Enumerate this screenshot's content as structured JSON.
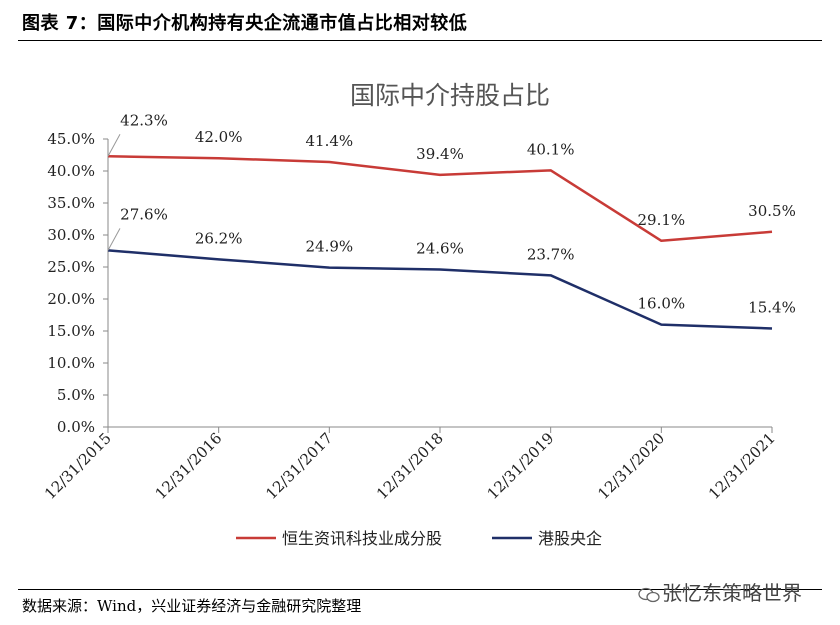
{
  "figure_title": "图表 7：国际中介机构持有央企流通市值占比相对较低",
  "source": "数据来源：Wind，兴业证券经济与金融研究院整理",
  "watermark": "张忆东策略世界",
  "chart_data": {
    "type": "line",
    "title": "国际中介持股占比",
    "xlabel": "",
    "ylabel": "",
    "categories": [
      "12/31/2015",
      "12/31/2016",
      "12/31/2017",
      "12/31/2018",
      "12/31/2019",
      "12/31/2020",
      "12/31/2021"
    ],
    "y_ticks": [
      "0.0%",
      "5.0%",
      "10.0%",
      "15.0%",
      "20.0%",
      "25.0%",
      "30.0%",
      "35.0%",
      "40.0%",
      "45.0%"
    ],
    "ylim": [
      0,
      45
    ],
    "grid": false,
    "legend_position": "bottom",
    "series": [
      {
        "name": "恒生资讯科技业成分股",
        "color": "#c83b37",
        "values": [
          42.3,
          42.0,
          41.4,
          39.4,
          40.1,
          29.1,
          30.5
        ],
        "labels": [
          "42.3%",
          "42.0%",
          "41.4%",
          "39.4%",
          "40.1%",
          "29.1%",
          "30.5%"
        ]
      },
      {
        "name": "港股央企",
        "color": "#1f2f68",
        "values": [
          27.6,
          26.2,
          24.9,
          24.6,
          23.7,
          16.0,
          15.4
        ],
        "labels": [
          "27.6%",
          "26.2%",
          "24.9%",
          "24.6%",
          "23.7%",
          "16.0%",
          "15.4%"
        ]
      }
    ]
  }
}
